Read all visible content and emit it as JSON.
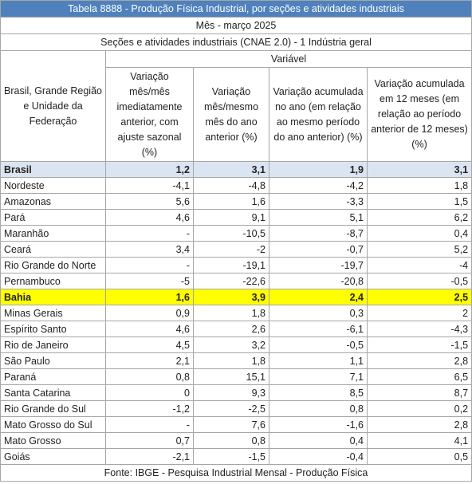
{
  "title": "Tabela 8888 - Produção Física Industrial, por seções e atividades industriais",
  "period": "Mês - março 2025",
  "section": "Seções e atividades industriais (CNAE 2.0) - 1 Indústria geral",
  "table": {
    "row_header": "Brasil, Grande Região e Unidade da Federação",
    "group_header": "Variável",
    "columns": [
      "Variação mês/mês imediatamente anterior, com ajuste sazonal (%)",
      "Variação mês/mesmo mês do ano anterior (%)",
      "Variação acumulada no ano (em relação ao mesmo período do ano anterior) (%)",
      "Variação acumulada em 12 meses (em relação ao período anterior de 12 meses) (%)"
    ],
    "rows": [
      [
        "Brasil",
        "1,2",
        "3,1",
        "1,9",
        "3,1"
      ],
      [
        "Nordeste",
        "-4,1",
        "-4,8",
        "-4,2",
        "1,8"
      ],
      [
        "Amazonas",
        "5,6",
        "1,6",
        "-3,3",
        "1,5"
      ],
      [
        "Pará",
        "4,6",
        "9,1",
        "5,1",
        "6,2"
      ],
      [
        "Maranhão",
        "-",
        "-10,5",
        "-8,7",
        "0,4"
      ],
      [
        "Ceará",
        "3,4",
        "-2",
        "-0,7",
        "5,2"
      ],
      [
        "Rio Grande do Norte",
        "-",
        "-19,1",
        "-19,7",
        "-4"
      ],
      [
        "Pernambuco",
        "-5",
        "-22,6",
        "-20,8",
        "-0,5"
      ],
      [
        "Bahia",
        "1,6",
        "3,9",
        "2,4",
        "2,5"
      ],
      [
        "Minas Gerais",
        "0,9",
        "1,8",
        "0,3",
        "2"
      ],
      [
        "Espírito Santo",
        "4,6",
        "2,6",
        "-6,1",
        "-4,3"
      ],
      [
        "Rio de Janeiro",
        "4,5",
        "3,2",
        "-0,5",
        "-1,5"
      ],
      [
        "São Paulo",
        "2,1",
        "1,8",
        "1,1",
        "2,8"
      ],
      [
        "Paraná",
        "0,8",
        "15,1",
        "7,1",
        "6,5"
      ],
      [
        "Santa Catarina",
        "0",
        "9,3",
        "8,5",
        "8,7"
      ],
      [
        "Rio Grande do Sul",
        "-1,2",
        "-2,5",
        "0,8",
        "0,2"
      ],
      [
        "Mato Grosso do Sul",
        "-",
        "7,6",
        "-1,6",
        "2,8"
      ],
      [
        "Mato Grosso",
        "0,7",
        "0,8",
        "0,4",
        "4,1"
      ],
      [
        "Goiás",
        "-2,1",
        "-1,5",
        "-0,4",
        "0,5"
      ]
    ]
  },
  "footer": "Fonte: IBGE - Pesquisa Industrial Mensal - Produção Física"
}
